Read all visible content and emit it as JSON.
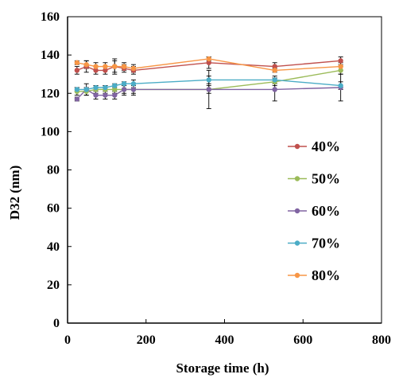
{
  "chart_data": {
    "type": "line",
    "xlabel": "Storage time (h)",
    "ylabel": "D32 (nm)",
    "xlim": [
      0,
      800
    ],
    "ylim": [
      0,
      160
    ],
    "x_ticks": [
      0,
      200,
      400,
      600,
      800
    ],
    "y_ticks": [
      0,
      20,
      40,
      60,
      80,
      100,
      120,
      140,
      160
    ],
    "grid": false,
    "legend_position": "center-right",
    "x": [
      24,
      48,
      72,
      96,
      120,
      144,
      168,
      360,
      528,
      696
    ],
    "series": [
      {
        "name": "40%",
        "color": "#c0504d",
        "values": [
          132,
          134,
          132,
          132,
          134,
          133,
          132,
          136,
          134,
          137
        ],
        "errors": [
          2,
          3,
          2,
          2,
          3,
          2,
          2,
          3,
          2,
          2
        ]
      },
      {
        "name": "50%",
        "color": "#9bbb59",
        "values": [
          121,
          121,
          122,
          122,
          122,
          122,
          122,
          122,
          126,
          132
        ],
        "errors": [
          2,
          2,
          2,
          2,
          2,
          2,
          2,
          2,
          2,
          2
        ]
      },
      {
        "name": "60%",
        "color": "#8064a2",
        "values": [
          117,
          122,
          119,
          119,
          119,
          122,
          122,
          122,
          122,
          123
        ],
        "errors": [
          1,
          3,
          2,
          2,
          2,
          3,
          3,
          10,
          6,
          7
        ]
      },
      {
        "name": "70%",
        "color": "#4bacc6",
        "values": [
          122,
          122,
          123,
          123,
          124,
          125,
          125,
          127,
          127,
          124
        ],
        "errors": [
          1,
          1,
          1,
          1,
          1,
          1,
          2,
          2,
          2,
          2
        ]
      },
      {
        "name": "80%",
        "color": "#f79646",
        "values": [
          136,
          135,
          134,
          134,
          134,
          134,
          133,
          138,
          132,
          134
        ],
        "errors": [
          1,
          2,
          2,
          2,
          4,
          2,
          2,
          1,
          1,
          2
        ]
      }
    ]
  }
}
